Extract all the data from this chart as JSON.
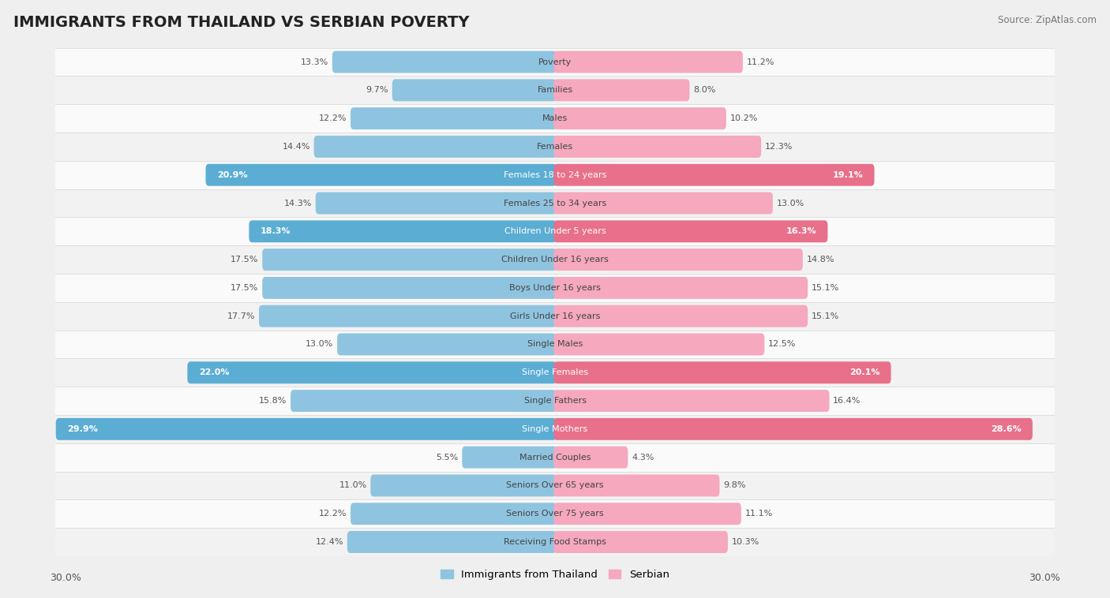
{
  "title": "IMMIGRANTS FROM THAILAND VS SERBIAN POVERTY",
  "source": "Source: ZipAtlas.com",
  "categories": [
    "Poverty",
    "Families",
    "Males",
    "Females",
    "Females 18 to 24 years",
    "Females 25 to 34 years",
    "Children Under 5 years",
    "Children Under 16 years",
    "Boys Under 16 years",
    "Girls Under 16 years",
    "Single Males",
    "Single Females",
    "Single Fathers",
    "Single Mothers",
    "Married Couples",
    "Seniors Over 65 years",
    "Seniors Over 75 years",
    "Receiving Food Stamps"
  ],
  "thailand_values": [
    13.3,
    9.7,
    12.2,
    14.4,
    20.9,
    14.3,
    18.3,
    17.5,
    17.5,
    17.7,
    13.0,
    22.0,
    15.8,
    29.9,
    5.5,
    11.0,
    12.2,
    12.4
  ],
  "serbian_values": [
    11.2,
    8.0,
    10.2,
    12.3,
    19.1,
    13.0,
    16.3,
    14.8,
    15.1,
    15.1,
    12.5,
    20.1,
    16.4,
    28.6,
    4.3,
    9.8,
    11.1,
    10.3
  ],
  "thailand_color": "#8FC4E0",
  "serbian_color": "#F5A8BE",
  "thailand_highlight_color": "#5BADD4",
  "serbian_highlight_color": "#E8708A",
  "highlight_rows": [
    4,
    6,
    11,
    13
  ],
  "bg_color": "#EFEFEF",
  "row_bg_even": "#FAFAFA",
  "row_bg_odd": "#F2F2F2",
  "max_value": 30.0,
  "axis_label_left": "30.0%",
  "axis_label_right": "30.0%",
  "legend_thailand": "Immigrants from Thailand",
  "legend_serbian": "Serbian",
  "title_fontsize": 14,
  "bar_height": 0.62,
  "label_fontsize": 8.0,
  "value_fontsize": 8.0
}
